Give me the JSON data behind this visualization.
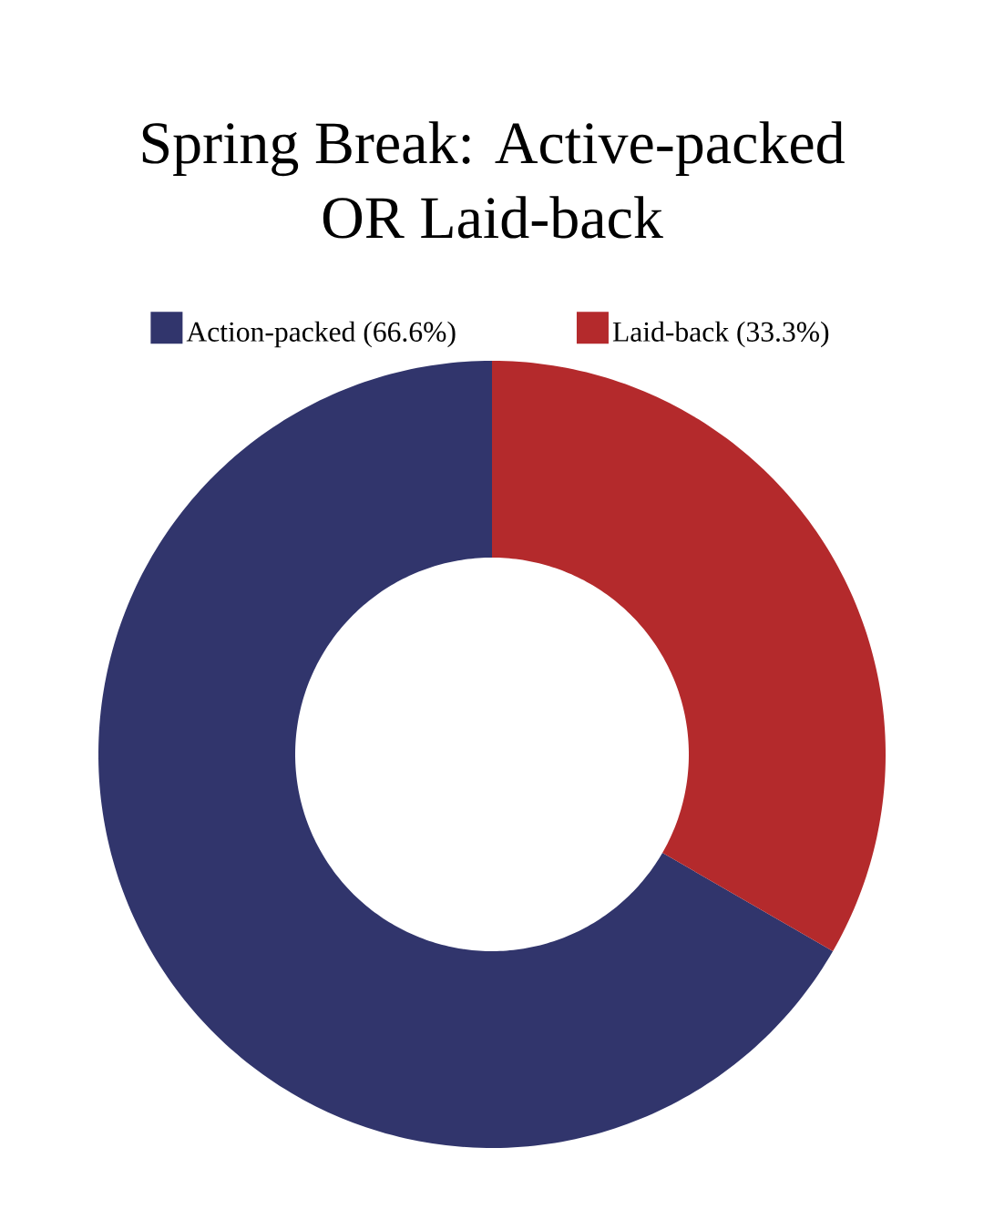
{
  "chart_data": {
    "type": "donut",
    "title": "Spring Break: Active-packed OR Laid-back",
    "categories": [
      "Action-packed (66.6%)",
      "Laid-back (33.3%)"
    ],
    "values": [
      66.6,
      33.3
    ],
    "colors": [
      "#31356c",
      "#b42a2c"
    ],
    "legend": "top"
  }
}
